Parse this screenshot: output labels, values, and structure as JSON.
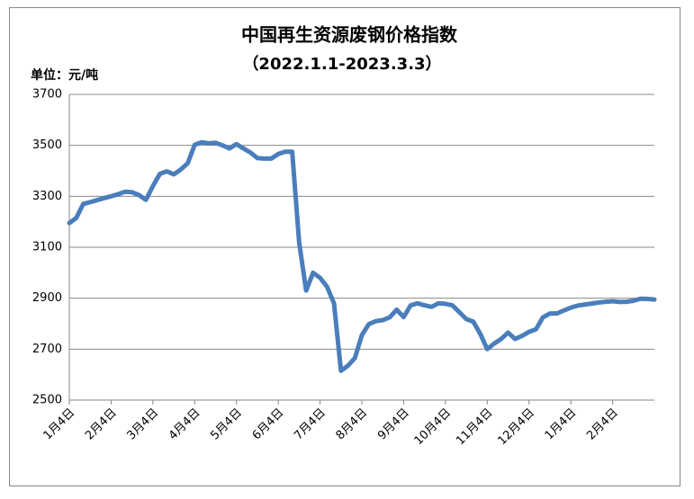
{
  "chart_data": {
    "type": "line",
    "title": "中国再生资源废钢价格指数",
    "subtitle": "（2022.1.1-2023.3.3）",
    "y_label": "单位：元/吨",
    "categories": [
      "1月4日",
      null,
      null,
      null,
      null,
      null,
      "2月4日",
      null,
      null,
      null,
      null,
      null,
      "3月4日",
      null,
      null,
      null,
      null,
      null,
      "4月4日",
      null,
      null,
      null,
      null,
      null,
      "5月4日",
      null,
      null,
      null,
      null,
      null,
      "6月4日",
      null,
      null,
      null,
      null,
      null,
      "7月4日",
      null,
      null,
      null,
      null,
      null,
      "8月4日",
      null,
      null,
      null,
      null,
      null,
      "9月4日",
      null,
      null,
      null,
      null,
      null,
      "10月4日",
      null,
      null,
      null,
      null,
      null,
      "11月4日",
      null,
      null,
      null,
      null,
      null,
      "12月4日",
      null,
      null,
      null,
      null,
      null,
      "1月4日",
      null,
      null,
      null,
      null,
      null,
      "2月4日",
      null,
      null,
      null,
      null,
      null,
      null
    ],
    "values": [
      3195,
      3215,
      3270,
      3277,
      3285,
      3293,
      3300,
      3308,
      3318,
      3316,
      3305,
      3286,
      3340,
      3388,
      3398,
      3386,
      3405,
      3430,
      3502,
      3512,
      3508,
      3510,
      3500,
      3488,
      3505,
      3488,
      3472,
      3450,
      3448,
      3448,
      3466,
      3475,
      3475,
      3118,
      2930,
      3000,
      2980,
      2945,
      2880,
      2615,
      2635,
      2665,
      2755,
      2798,
      2810,
      2814,
      2825,
      2855,
      2826,
      2872,
      2880,
      2872,
      2866,
      2880,
      2878,
      2872,
      2845,
      2818,
      2808,
      2760,
      2700,
      2722,
      2740,
      2765,
      2740,
      2752,
      2768,
      2778,
      2825,
      2840,
      2840,
      2852,
      2863,
      2871,
      2875,
      2879,
      2883,
      2886,
      2888,
      2885,
      2886,
      2890,
      2898,
      2897,
      2895
    ],
    "color": "#4a7ebb",
    "ylim": [
      2500,
      3700
    ],
    "yticks": [
      2500,
      2700,
      2900,
      3100,
      3300,
      3500,
      3700
    ],
    "grid": true
  }
}
